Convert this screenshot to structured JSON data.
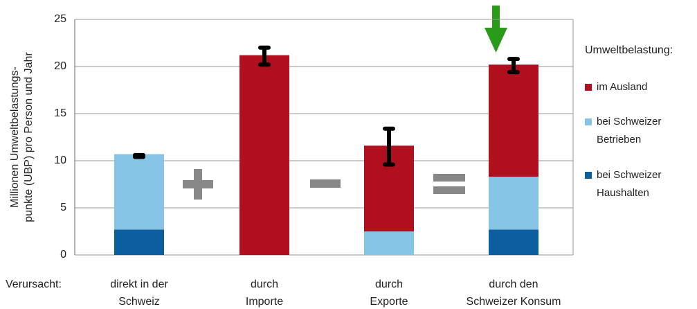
{
  "chart_data": {
    "type": "stacked-bar",
    "y_label": [
      "Millionen Umweltbelastungs-",
      "punkte (UBP) pro Person und Jahr"
    ],
    "x_label": "Verursacht:",
    "categories": [
      [
        "direkt in der",
        "Schweiz"
      ],
      [
        "durch",
        "Importe"
      ],
      [
        "durch",
        "Exporte"
      ],
      [
        "durch den",
        "Schweizer Konsum"
      ]
    ],
    "series": [
      {
        "name": "bei Schweizer Haushalten",
        "color": "#0b5f9e",
        "values": [
          2.7,
          null,
          null,
          2.7
        ]
      },
      {
        "name": "bei Schweizer Betrieben",
        "color": "#85c4e4",
        "values": [
          8.0,
          null,
          2.5,
          5.6
        ]
      },
      {
        "name": "im Ausland",
        "color": "#b0101e",
        "values": [
          null,
          21.2,
          9.1,
          11.9
        ]
      }
    ],
    "error_bars": [
      {
        "low": 10.4,
        "high": 10.6
      },
      {
        "low": 20.2,
        "high": 22.0
      },
      {
        "low": 9.6,
        "high": 13.4
      },
      {
        "low": 19.4,
        "high": 20.8
      }
    ],
    "legend_title": "Umweltbelastung:",
    "ylim": [
      0,
      25
    ],
    "yticks": [
      0,
      5,
      10,
      15,
      20,
      25
    ],
    "grid": true
  }
}
